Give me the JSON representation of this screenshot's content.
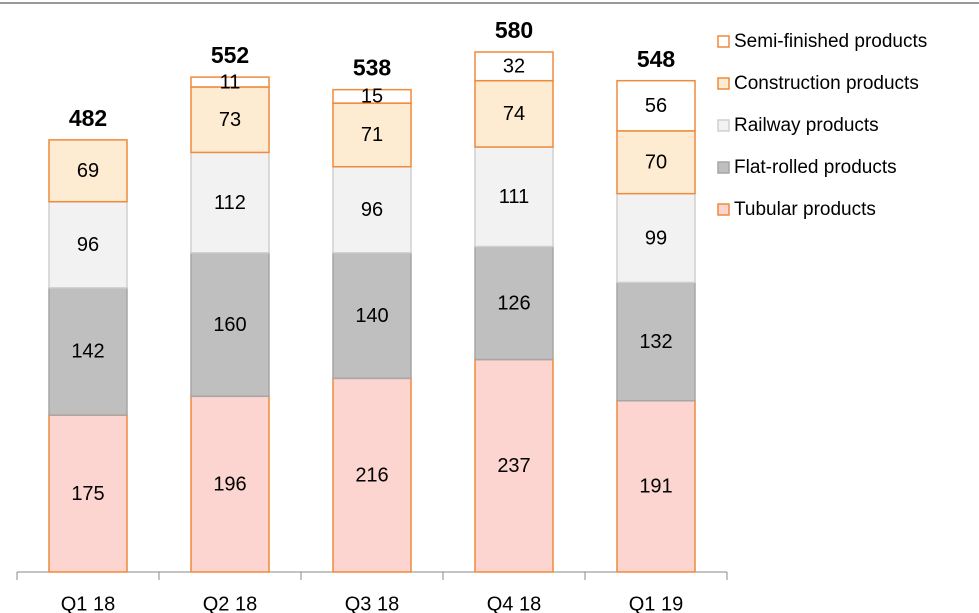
{
  "chart_data": {
    "type": "stacked_bar",
    "categories": [
      "Q1 18",
      "Q2 18",
      "Q3 18",
      "Q4 18",
      "Q1 19"
    ],
    "series": [
      {
        "name": "Tubular products",
        "color": "#fcd5d0",
        "border": "#f08a3c",
        "values": [
          175,
          196,
          216,
          237,
          191
        ]
      },
      {
        "name": "Flat-rolled products",
        "color": "#bfbfbf",
        "border": "#a6a6a6",
        "values": [
          142,
          160,
          140,
          126,
          132
        ]
      },
      {
        "name": "Railway products",
        "color": "#f2f2f2",
        "border": "#d0d0d0",
        "values": [
          96,
          112,
          96,
          111,
          99
        ]
      },
      {
        "name": "Construction products",
        "color": "#fdebd2",
        "border": "#f08a3c",
        "values": [
          69,
          73,
          71,
          74,
          70
        ]
      },
      {
        "name": "Semi-finished products",
        "color": "#ffffff",
        "border": "#f08a3c",
        "values": [
          null,
          11,
          15,
          32,
          56
        ]
      }
    ],
    "totals": [
      482,
      552,
      538,
      580,
      548
    ],
    "legend": "right"
  }
}
